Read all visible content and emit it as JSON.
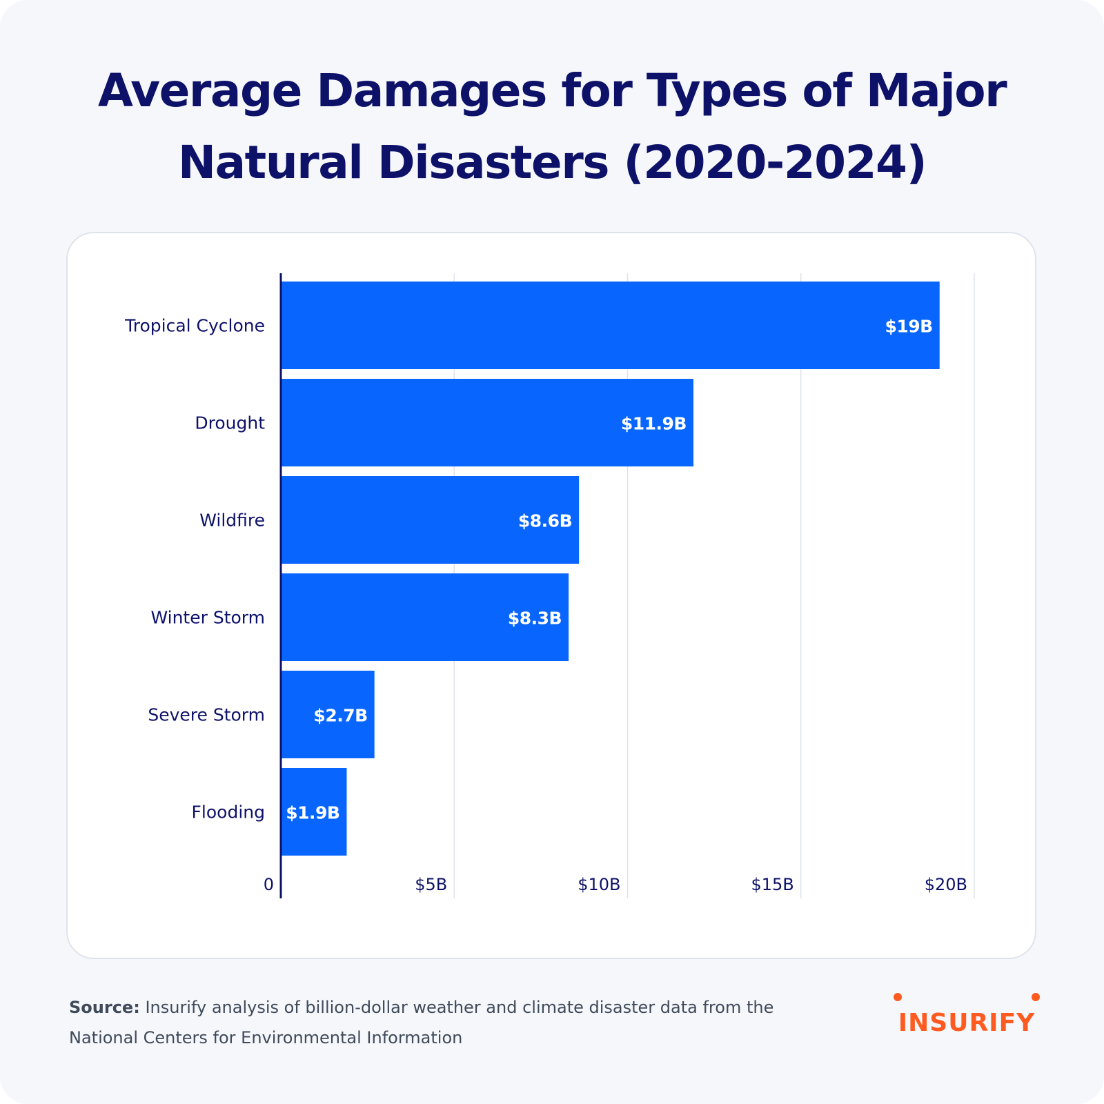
{
  "title_lines": [
    "Average Damages for Types of Major",
    "Natural Disasters (2020-2024)"
  ],
  "source": {
    "label": "Source:",
    "text": "Insurify analysis of billion-dollar weather and climate disaster data from the National Centers for Environmental Information"
  },
  "logo_text": "INSURIFY",
  "colors": {
    "bar": "#0866ff",
    "title": "#0d1168",
    "axis_text": "#0d1168",
    "brand": "#ff5a1f",
    "background": "#f5f7fb",
    "card": "#ffffff",
    "grid": "#dfe3ea"
  },
  "chart_data": {
    "type": "bar",
    "orientation": "horizontal",
    "categories": [
      "Tropical Cyclone",
      "Drought",
      "Wildfire",
      "Winter Storm",
      "Severe Storm",
      "Flooding"
    ],
    "values": [
      19,
      11.9,
      8.6,
      8.3,
      2.7,
      1.9
    ],
    "value_labels": [
      "$19B",
      "$11.9B",
      "$8.6B",
      "$8.3B",
      "$2.7B",
      "$1.9B"
    ],
    "unit": "billions USD",
    "xlim": [
      0,
      20
    ],
    "x_ticks": [
      0,
      5,
      10,
      15,
      20
    ],
    "x_tick_labels": [
      "0",
      "$5B",
      "$10B",
      "$15B",
      "$20B"
    ],
    "grid": "vertical",
    "legend": "none"
  }
}
